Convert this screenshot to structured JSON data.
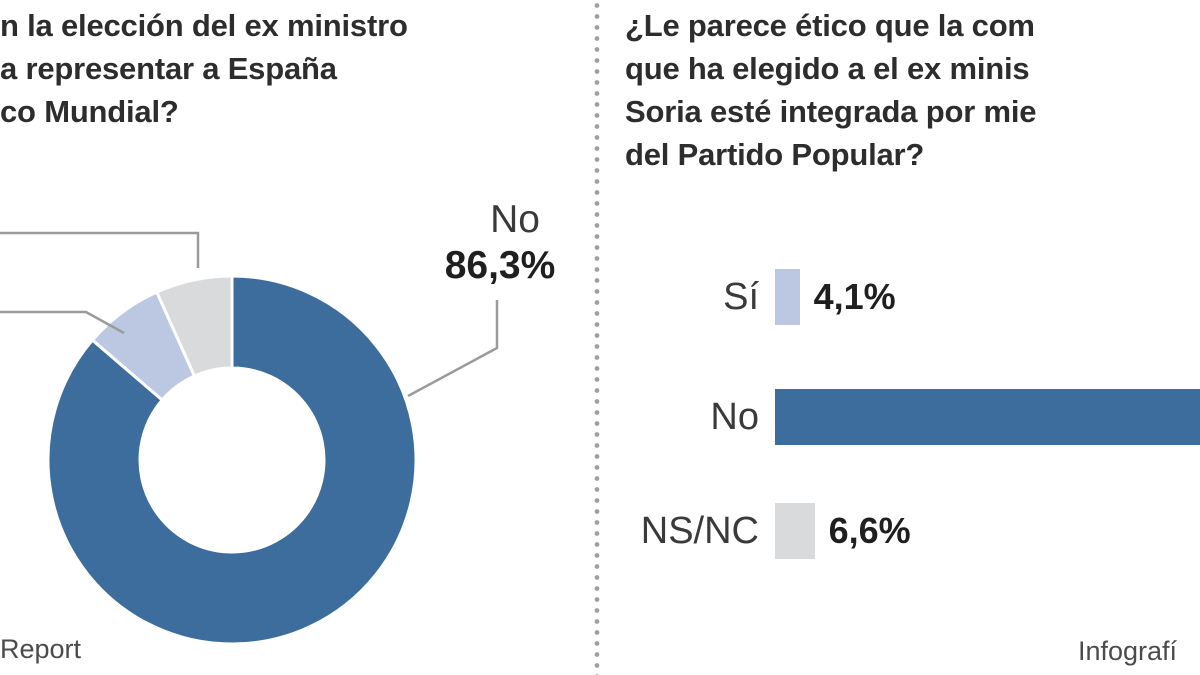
{
  "left_panel": {
    "title_lines": [
      "n la elección del ex ministro",
      "a representar a España",
      "co Mundial?"
    ],
    "donut_callout": {
      "label": "No",
      "value": "86,3%"
    },
    "credit": "Report"
  },
  "right_panel": {
    "title_lines": [
      "¿Le parece ético que la com",
      "que ha elegido a el ex minis",
      "Soria esté integrada por mie",
      "del Partido Popular?"
    ],
    "credit": "Infografí"
  },
  "colors": {
    "primary_blue": "#3c6d9c",
    "light_blue": "#bcc8e2",
    "light_gray": "#d8dadc",
    "leader_line": "#9b9b9b"
  },
  "chart_data": [
    {
      "type": "pie",
      "style": "donut",
      "title": "n la elección del ex ministro / a representar a España / co Mundial? (question cropped at left edge)",
      "labels": [
        "No",
        "unlabeled-light-blue-slice",
        "unlabeled-gray-slice"
      ],
      "values": [
        86.3,
        7.0,
        6.7
      ],
      "value_labels": [
        "86,3%",
        "",
        ""
      ],
      "colors": [
        "#3c6d9c",
        "#bcc8e2",
        "#d8dadc"
      ],
      "note": "Only the 'No 86,3%' callout is visible; labels for the two small slices are cropped out of frame, leader lines point off the left edge. Small slice values estimated from arc size."
    },
    {
      "type": "bar",
      "orientation": "horizontal",
      "title": "¿Le parece ético que la com… que ha elegido a el ex minis… Soria esté integrada por mie… del Partido Popular? (question cropped at right edge)",
      "categories": [
        "Sí",
        "No",
        "NS/NC"
      ],
      "values": [
        4.1,
        89.3,
        6.6
      ],
      "value_labels": [
        "4,1%",
        "",
        "6,6%"
      ],
      "colors": [
        "#bcc8e2",
        "#3c6d9c",
        "#d8dadc"
      ],
      "note": "The 'No' bar runs past the right crop edge and its value label is not visible; value estimated as remainder."
    }
  ]
}
